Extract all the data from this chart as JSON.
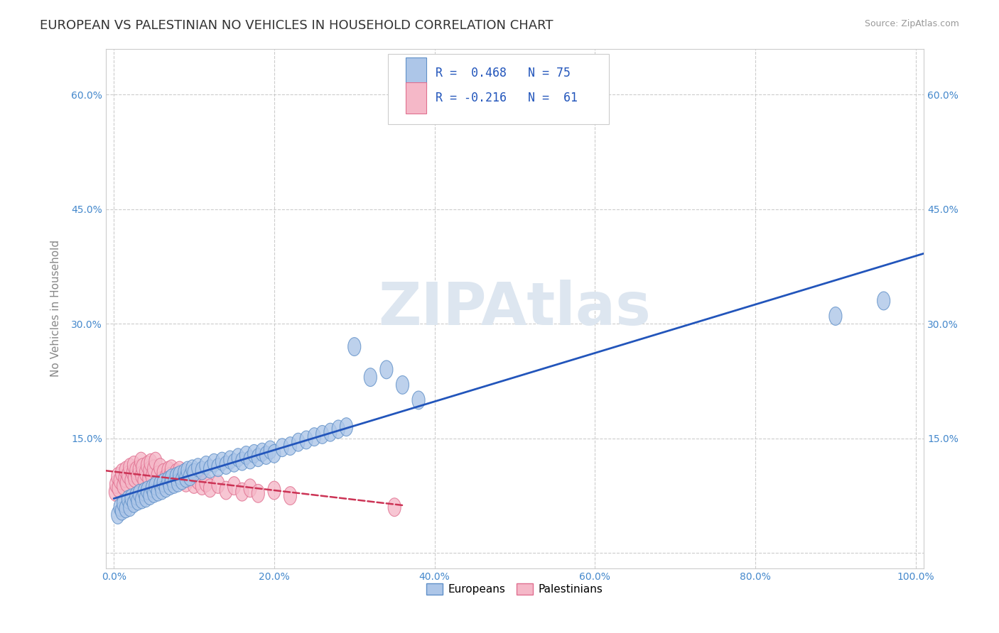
{
  "title": "EUROPEAN VS PALESTINIAN NO VEHICLES IN HOUSEHOLD CORRELATION CHART",
  "source": "Source: ZipAtlas.com",
  "ylabel": "No Vehicles in Household",
  "xlabel": "",
  "xlim": [
    -0.01,
    1.01
  ],
  "ylim": [
    -0.02,
    0.66
  ],
  "xticks": [
    0.0,
    0.2,
    0.4,
    0.6,
    0.8,
    1.0
  ],
  "xtick_labels": [
    "0.0%",
    "20.0%",
    "40.0%",
    "60.0%",
    "80.0%",
    "100.0%"
  ],
  "ytick_positions": [
    0.0,
    0.15,
    0.3,
    0.45,
    0.6
  ],
  "ytick_labels": [
    "",
    "15.0%",
    "30.0%",
    "45.0%",
    "60.0%"
  ],
  "european_color": "#adc6e8",
  "palestinian_color": "#f5b8c8",
  "european_edge": "#6090c8",
  "palestinian_edge": "#e07090",
  "trend_european_color": "#2255bb",
  "trend_palestinian_color": "#cc3355",
  "background_color": "#ffffff",
  "grid_color": "#cccccc",
  "title_color": "#333333",
  "title_fontsize": 13,
  "source_fontsize": 9,
  "axis_label_color": "#888888",
  "tick_label_color": "#4488cc",
  "watermark": "ZIPAtlas",
  "watermark_color": "#dde6f0",
  "watermark_fontsize": 60,
  "legend_R_color": "#2255bb",
  "legend_fontsize": 12,
  "europeans_x": [
    0.005,
    0.008,
    0.01,
    0.012,
    0.015,
    0.018,
    0.02,
    0.022,
    0.025,
    0.028,
    0.03,
    0.032,
    0.035,
    0.038,
    0.04,
    0.042,
    0.045,
    0.048,
    0.05,
    0.052,
    0.055,
    0.058,
    0.06,
    0.062,
    0.065,
    0.068,
    0.07,
    0.072,
    0.075,
    0.078,
    0.08,
    0.082,
    0.085,
    0.088,
    0.09,
    0.092,
    0.095,
    0.098,
    0.1,
    0.105,
    0.11,
    0.115,
    0.12,
    0.125,
    0.13,
    0.135,
    0.14,
    0.145,
    0.15,
    0.155,
    0.16,
    0.165,
    0.17,
    0.175,
    0.18,
    0.185,
    0.19,
    0.195,
    0.2,
    0.21,
    0.22,
    0.23,
    0.24,
    0.25,
    0.26,
    0.27,
    0.28,
    0.29,
    0.3,
    0.32,
    0.34,
    0.36,
    0.38,
    0.9,
    0.96
  ],
  "europeans_y": [
    0.05,
    0.06,
    0.055,
    0.065,
    0.058,
    0.07,
    0.06,
    0.072,
    0.065,
    0.075,
    0.068,
    0.078,
    0.07,
    0.08,
    0.072,
    0.082,
    0.075,
    0.085,
    0.078,
    0.088,
    0.08,
    0.09,
    0.082,
    0.092,
    0.085,
    0.095,
    0.088,
    0.098,
    0.09,
    0.1,
    0.092,
    0.102,
    0.095,
    0.105,
    0.098,
    0.108,
    0.1,
    0.11,
    0.105,
    0.112,
    0.108,
    0.115,
    0.11,
    0.118,
    0.112,
    0.12,
    0.115,
    0.122,
    0.118,
    0.125,
    0.12,
    0.128,
    0.122,
    0.13,
    0.125,
    0.132,
    0.128,
    0.135,
    0.13,
    0.138,
    0.14,
    0.145,
    0.148,
    0.152,
    0.155,
    0.158,
    0.162,
    0.165,
    0.27,
    0.23,
    0.24,
    0.22,
    0.2,
    0.31,
    0.33
  ],
  "palestinians_x": [
    0.002,
    0.003,
    0.005,
    0.006,
    0.008,
    0.01,
    0.012,
    0.014,
    0.015,
    0.016,
    0.018,
    0.02,
    0.022,
    0.024,
    0.025,
    0.026,
    0.028,
    0.03,
    0.032,
    0.034,
    0.035,
    0.036,
    0.038,
    0.04,
    0.042,
    0.044,
    0.045,
    0.046,
    0.048,
    0.05,
    0.052,
    0.055,
    0.058,
    0.06,
    0.062,
    0.065,
    0.068,
    0.07,
    0.072,
    0.075,
    0.078,
    0.08,
    0.082,
    0.085,
    0.088,
    0.09,
    0.095,
    0.1,
    0.105,
    0.11,
    0.115,
    0.12,
    0.13,
    0.14,
    0.15,
    0.16,
    0.17,
    0.18,
    0.2,
    0.22,
    0.35
  ],
  "palestinians_y": [
    0.08,
    0.09,
    0.1,
    0.085,
    0.095,
    0.105,
    0.088,
    0.098,
    0.108,
    0.092,
    0.102,
    0.112,
    0.095,
    0.105,
    0.115,
    0.098,
    0.108,
    0.1,
    0.11,
    0.12,
    0.102,
    0.112,
    0.095,
    0.105,
    0.115,
    0.098,
    0.108,
    0.118,
    0.1,
    0.11,
    0.12,
    0.102,
    0.112,
    0.095,
    0.105,
    0.098,
    0.108,
    0.1,
    0.11,
    0.095,
    0.105,
    0.098,
    0.108,
    0.095,
    0.1,
    0.092,
    0.098,
    0.09,
    0.095,
    0.088,
    0.092,
    0.085,
    0.09,
    0.082,
    0.088,
    0.08,
    0.085,
    0.078,
    0.082,
    0.075,
    0.06
  ],
  "legend_R_eu_text": "R =  0.468   N = 75",
  "legend_R_pa_text": "R = -0.216   N =  61"
}
